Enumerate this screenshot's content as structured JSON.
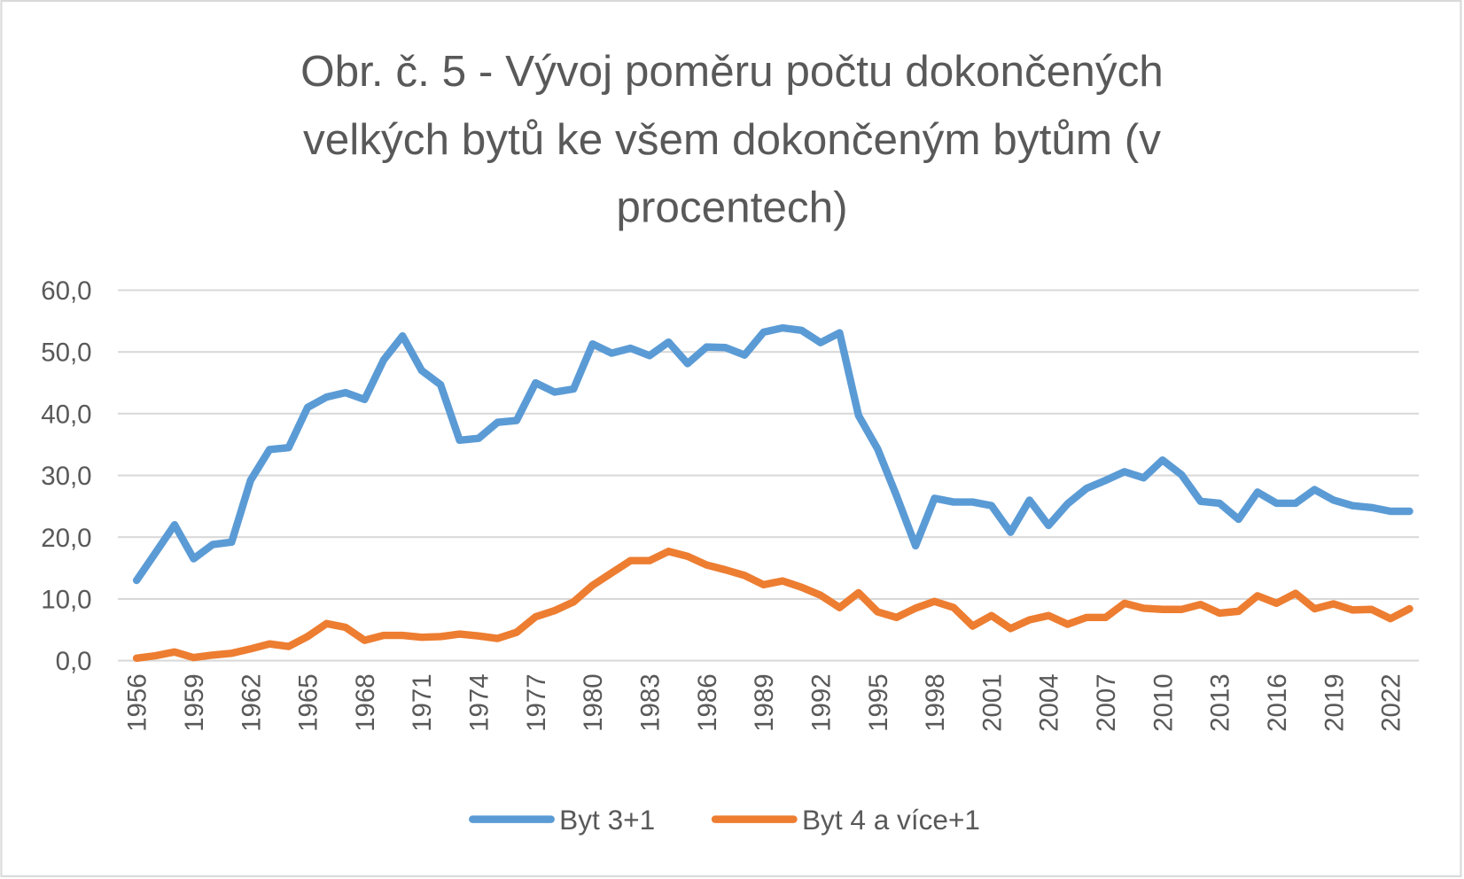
{
  "chart_data": {
    "type": "line",
    "title_lines": [
      "Obr. č. 5 - Vývoj poměru počtu dokončených",
      "velkých bytů ke všem dokončeným bytům (v",
      "procentech)"
    ],
    "xlabel": "",
    "ylabel": "",
    "ylim": [
      0,
      60
    ],
    "yticks": [
      "0,0",
      "10,0",
      "20,0",
      "30,0",
      "40,0",
      "50,0",
      "60,0"
    ],
    "ytick_values": [
      0,
      10,
      20,
      30,
      40,
      50,
      60
    ],
    "x_start": 1956,
    "x_end": 2023,
    "xtick_labels": [
      "1956",
      "1959",
      "1962",
      "1965",
      "1968",
      "1971",
      "1974",
      "1977",
      "1980",
      "1983",
      "1986",
      "1989",
      "1992",
      "1995",
      "1998",
      "2001",
      "2004",
      "2007",
      "2010",
      "2013",
      "2016",
      "2019",
      "2022"
    ],
    "grid": true,
    "legend_position": "bottom",
    "series": [
      {
        "name": "Byt 3+1",
        "color": "#5b9bd5",
        "values": [
          13,
          17.5,
          22,
          16.5,
          18.8,
          19.2,
          29.2,
          34.2,
          34.5,
          41,
          42.7,
          43.4,
          42.3,
          48.7,
          52.6,
          47,
          44.7,
          35.7,
          36,
          38.6,
          38.9,
          45,
          43.5,
          44,
          51.3,
          49.8,
          50.6,
          49.4,
          51.6,
          48.1,
          50.8,
          50.7,
          49.5,
          53.2,
          53.9,
          53.5,
          51.5,
          53.1,
          39.7,
          34.3,
          26.7,
          18.6,
          26.3,
          25.7,
          25.7,
          25.1,
          20.8,
          26,
          21.9,
          25.4,
          27.9,
          29.2,
          30.6,
          29.6,
          32.5,
          30.1,
          25.8,
          25.5,
          22.9,
          27.3,
          25.5,
          25.5,
          27.7,
          26,
          25.1,
          24.8,
          24.2,
          24.2
        ]
      },
      {
        "name": "Byt 4 a více+1",
        "color": "#ed7d31",
        "values": [
          0.4,
          0.8,
          1.4,
          0.5,
          0.9,
          1.2,
          1.9,
          2.7,
          2.3,
          3.9,
          6.0,
          5.4,
          3.3,
          4.1,
          4.1,
          3.8,
          3.9,
          4.3,
          4.0,
          3.6,
          4.6,
          7.1,
          8.1,
          9.5,
          12.2,
          14.2,
          16.2,
          16.2,
          17.7,
          16.9,
          15.5,
          14.7,
          13.8,
          12.3,
          12.9,
          11.9,
          10.6,
          8.6,
          11.0,
          7.9,
          7.0,
          8.5,
          9.6,
          8.6,
          5.6,
          7.3,
          5.2,
          6.6,
          7.3,
          5.9,
          7.0,
          7.0,
          9.3,
          8.5,
          8.3,
          8.3,
          9.1,
          7.7,
          8.0,
          10.5,
          9.3,
          10.9,
          8.4,
          9.2,
          8.2,
          8.3,
          6.8,
          8.4
        ]
      }
    ]
  }
}
